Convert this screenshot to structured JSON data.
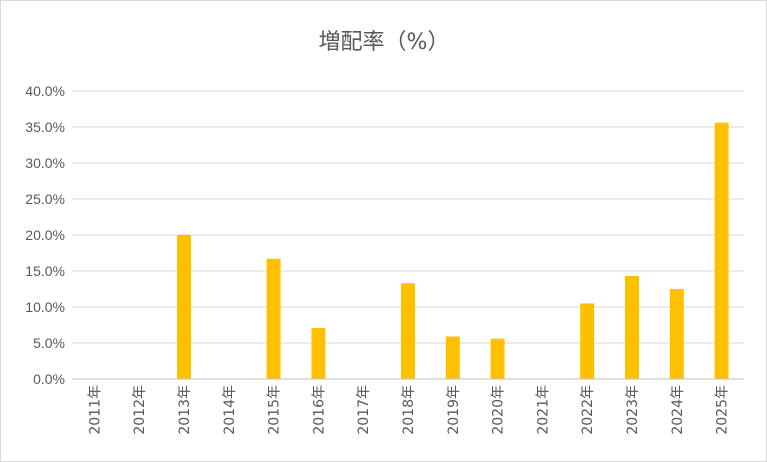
{
  "chart_data": {
    "type": "bar",
    "title": "増配率（%）",
    "xlabel": "",
    "ylabel": "",
    "categories": [
      "2011年",
      "2012年",
      "2013年",
      "2014年",
      "2015年",
      "2016年",
      "2017年",
      "2018年",
      "2019年",
      "2020年",
      "2021年",
      "2022年",
      "2023年",
      "2024年",
      "2025年"
    ],
    "values": [
      0,
      0,
      20.0,
      0,
      16.7,
      7.1,
      0,
      13.3,
      5.9,
      5.6,
      0,
      10.5,
      14.3,
      12.5,
      35.6
    ],
    "ylim": [
      0,
      40
    ],
    "yticks": [
      "0.0%",
      "5.0%",
      "10.0%",
      "15.0%",
      "20.0%",
      "25.0%",
      "30.0%",
      "35.0%",
      "40.0%"
    ],
    "grid": true,
    "legend": "none",
    "bar_color": "#ffc000"
  }
}
